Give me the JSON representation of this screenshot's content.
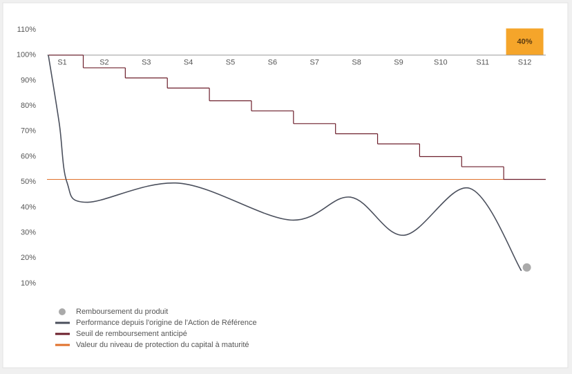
{
  "chart_data": {
    "type": "line",
    "categories": [
      "S1",
      "S2",
      "S3",
      "S4",
      "S5",
      "S6",
      "S7",
      "S8",
      "S9",
      "S10",
      "S11",
      "S12"
    ],
    "xlim": [
      0.67,
      12.5
    ],
    "ylim": [
      10,
      110
    ],
    "yticks": [
      {
        "value": 10,
        "label": "10%"
      },
      {
        "value": 20,
        "label": "20%"
      },
      {
        "value": 30,
        "label": "30%"
      },
      {
        "value": 40,
        "label": "40%"
      },
      {
        "value": 50,
        "label": "50%"
      },
      {
        "value": 60,
        "label": "60%"
      },
      {
        "value": 70,
        "label": "70%"
      },
      {
        "value": 80,
        "label": "80%"
      },
      {
        "value": 90,
        "label": "90%"
      },
      {
        "value": 100,
        "label": "100%"
      },
      {
        "value": 110,
        "label": "110%"
      }
    ],
    "x_axis_at": 100,
    "coupon": {
      "base": 100,
      "top": 110.5,
      "label": "40%",
      "color": "#f5a52a"
    },
    "redemption": {
      "name": "Remboursement du produit",
      "x": 12.05,
      "value": 16.3,
      "color": "#aaaaaa"
    },
    "performance": {
      "name": "Performance depuis l'origine de l'Action de Référence",
      "color": "#4a4f5c",
      "x": [
        0.67,
        0.93,
        1.11,
        1.59,
        3.79,
        6.42,
        7.86,
        9.13,
        10.69,
        11.92
      ],
      "values": [
        100,
        73,
        50,
        42,
        49.5,
        35,
        44,
        29,
        47.5,
        15
      ]
    },
    "threshold": {
      "name": "Seuil de remboursement anticipé",
      "color": "#6b1d2a",
      "values": [
        100,
        95,
        91,
        87,
        82,
        78,
        73,
        69,
        65,
        60,
        56,
        51
      ]
    },
    "protection": {
      "name": "Valeur du niveau de protection du capital à maturité",
      "color": "#e0702a",
      "value": 51
    }
  }
}
